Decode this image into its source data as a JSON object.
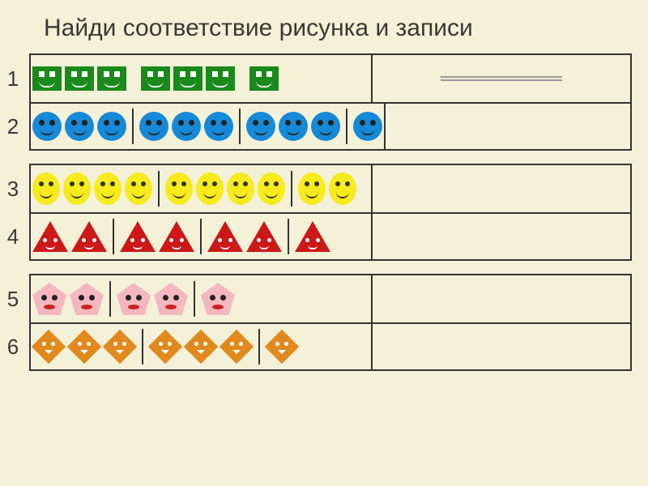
{
  "title": "Найди соответствие рисунка и записи",
  "background_color": "#f3f1d7",
  "border_color": "#333333",
  "rows": [
    {
      "num": "1",
      "shape": "square",
      "color": "#1a8a1a",
      "face_color": "#ffffff",
      "groups": [
        3,
        3,
        1
      ],
      "answer_line": true
    },
    {
      "num": "2",
      "shape": "circle",
      "color": "#1689d8",
      "face_color": "#222222",
      "groups": [
        3,
        3,
        3,
        1
      ],
      "answer_line": false
    },
    {
      "num": "3",
      "shape": "oval",
      "color": "#f7ea1d",
      "face_color": "#333333",
      "groups": [
        4,
        4,
        2
      ],
      "answer_line": false
    },
    {
      "num": "4",
      "shape": "triangle",
      "color": "#cc1818",
      "face_color": "#ffffff",
      "groups": [
        2,
        2,
        2,
        1
      ],
      "answer_line": false
    },
    {
      "num": "5",
      "shape": "pentagon",
      "color": "#f4b7c0",
      "face_color": "#222222",
      "groups": [
        2,
        2,
        1
      ],
      "answer_line": false
    },
    {
      "num": "6",
      "shape": "diamond",
      "color": "#e08a1e",
      "face_color": "#ffffff",
      "groups": [
        3,
        3,
        1
      ],
      "answer_line": false
    }
  ],
  "blocks": [
    [
      0,
      1
    ],
    [
      2,
      3
    ],
    [
      4,
      5
    ]
  ]
}
